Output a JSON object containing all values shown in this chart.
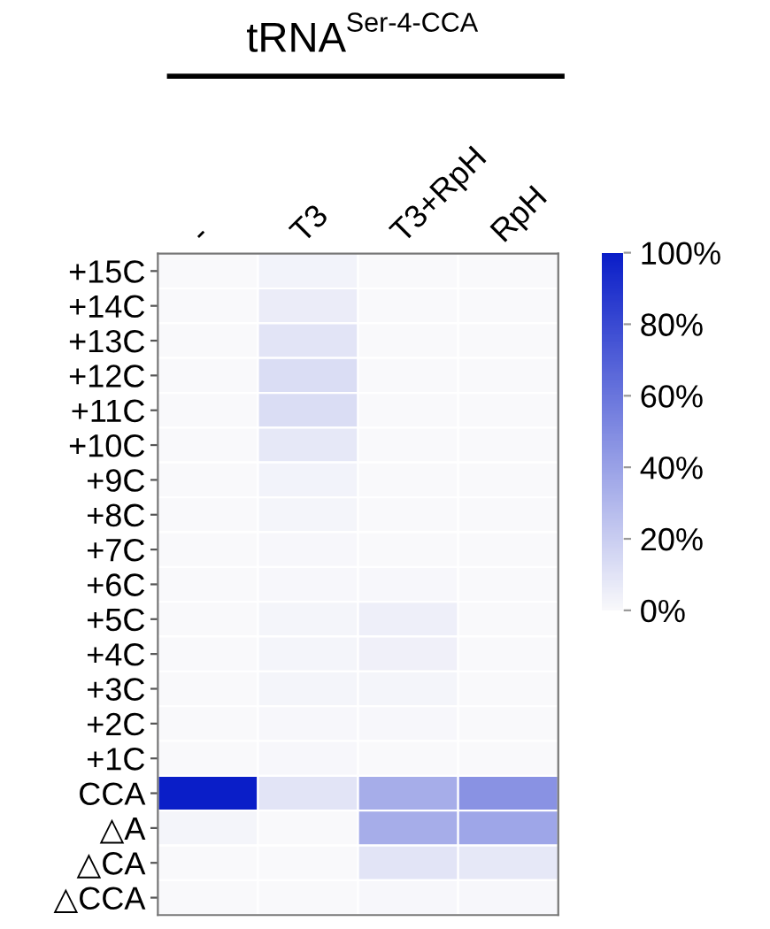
{
  "chart_data": {
    "type": "heatmap",
    "title": "tRNA$^{Ser-4-CCA}$",
    "categories": [
      "-",
      "T3",
      "T3+RpH",
      "RpH"
    ],
    "y_categories": [
      "+15C",
      "+14C",
      "+13C",
      "+12C",
      "+11C",
      "+10C",
      "+9C",
      "+8C",
      "+7C",
      "+6C",
      "+5C",
      "+4C",
      "+3C",
      "+2C",
      "+1C",
      "CCA",
      "△A",
      "△CA",
      "△CCA"
    ],
    "cells": [
      [
        0,
        3,
        0,
        0
      ],
      [
        0,
        6,
        0,
        0
      ],
      [
        0,
        10,
        0,
        0
      ],
      [
        0,
        13,
        0,
        0
      ],
      [
        0,
        13,
        0,
        0
      ],
      [
        0,
        8,
        0,
        0
      ],
      [
        0,
        3,
        0,
        0
      ],
      [
        0,
        2,
        0,
        0
      ],
      [
        0,
        1,
        0,
        0
      ],
      [
        0,
        1,
        1,
        0
      ],
      [
        0,
        2,
        5,
        0
      ],
      [
        0,
        2,
        4,
        0
      ],
      [
        0,
        2,
        2,
        0
      ],
      [
        0,
        1,
        1,
        0
      ],
      [
        0,
        1,
        0,
        0
      ],
      [
        100,
        10,
        35,
        47
      ],
      [
        2,
        0,
        35,
        38
      ],
      [
        0,
        0,
        10,
        8
      ],
      [
        0,
        0,
        1,
        1
      ]
    ],
    "colors": [
      "#f9f9fb",
      "#0a1ec8"
    ],
    "clim": [
      0,
      100
    ],
    "cticks": [
      {
        "value": 0,
        "label": "0%"
      },
      {
        "value": 20,
        "label": "20%"
      },
      {
        "value": 40,
        "label": "40%"
      },
      {
        "value": 60,
        "label": "60%"
      },
      {
        "value": 80,
        "label": "80%"
      },
      {
        "value": 100,
        "label": "100%"
      }
    ]
  }
}
